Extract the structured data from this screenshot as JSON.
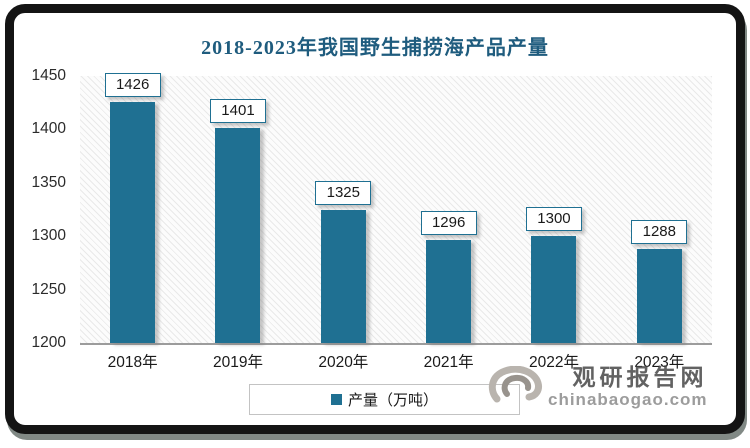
{
  "chart_data": {
    "type": "bar",
    "title": "2018-2023年我国野生捕捞海产品产量",
    "categories": [
      "2018年",
      "2019年",
      "2020年",
      "2021年",
      "2022年",
      "2023年"
    ],
    "values": [
      1426,
      1401,
      1325,
      1296,
      1300,
      1288
    ],
    "series_name": "产量（万吨）",
    "xlabel": "",
    "ylabel": "",
    "ylim": [
      1200,
      1450
    ],
    "y_ticks": [
      1450,
      1400,
      1350,
      1300,
      1250,
      1200
    ],
    "grid": false,
    "data_labels": true,
    "legend_position": "bottom",
    "plot_background": "diagonal-hatch"
  },
  "legend": {
    "label": "产量（万吨）",
    "swatch_color": "#1F7092"
  },
  "watermark": {
    "brand": "观研报告网",
    "domain": "chinabaogao.com"
  },
  "colors": {
    "bar": "#1F7092",
    "title": "#1F5C7E",
    "axis_line": "#9c9c9c",
    "data_label_border": "#1F7092"
  }
}
